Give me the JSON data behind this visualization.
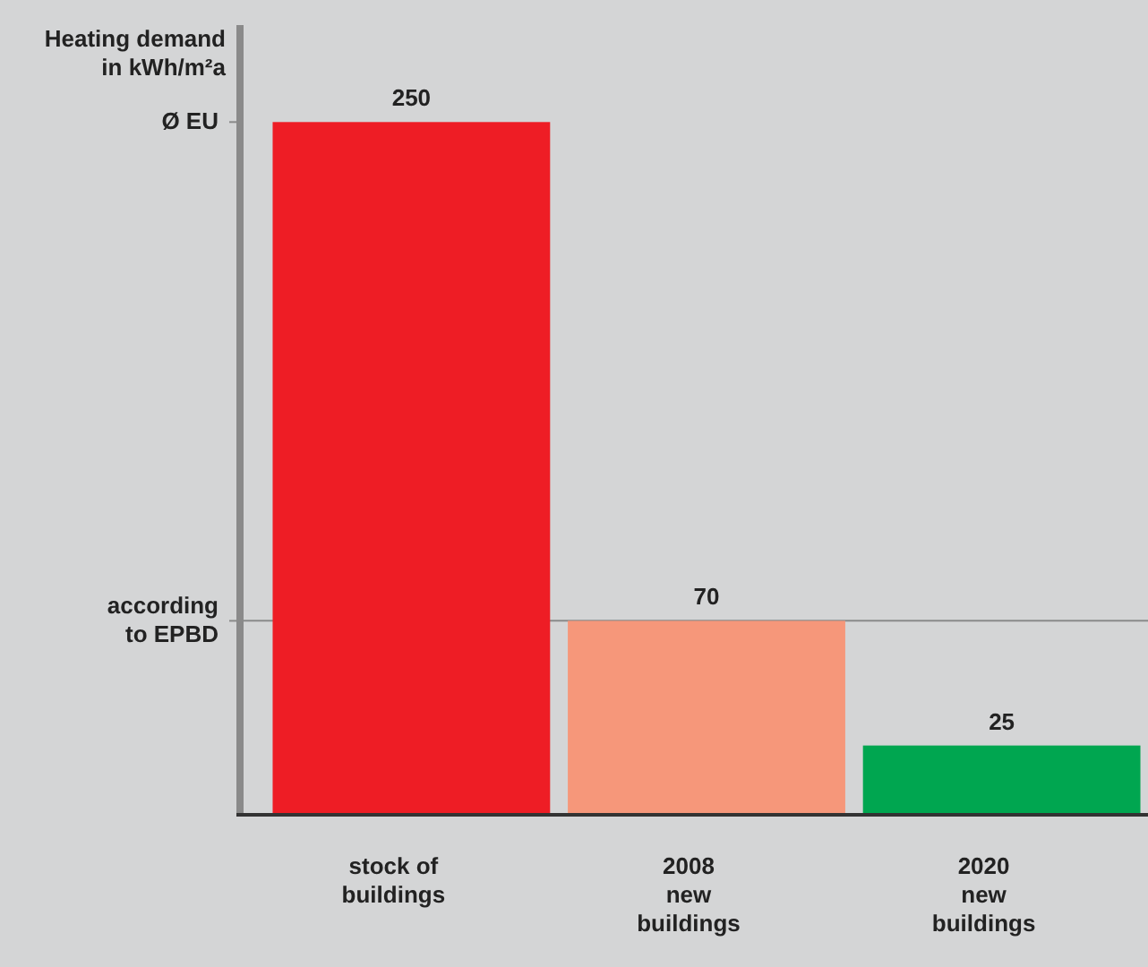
{
  "chart_data": {
    "type": "bar",
    "ylabel": "Heating demand\nin kWh/m²a",
    "categories": [
      "stock of\nbuildings",
      "2008\nnew\nbuildings",
      "2020\nnew\nbuildings"
    ],
    "values": [
      250,
      70,
      25
    ],
    "colors": [
      "#ee1d25",
      "#f6977a",
      "#00a650"
    ],
    "ylim": [
      0,
      285
    ],
    "annotations": [
      "Ø EU"
    ],
    "ref_lines": [
      {
        "axis": "y",
        "value": 70,
        "color": "#8a8a8a",
        "label": "according\nto EPBD"
      }
    ],
    "data_labels": true
  }
}
